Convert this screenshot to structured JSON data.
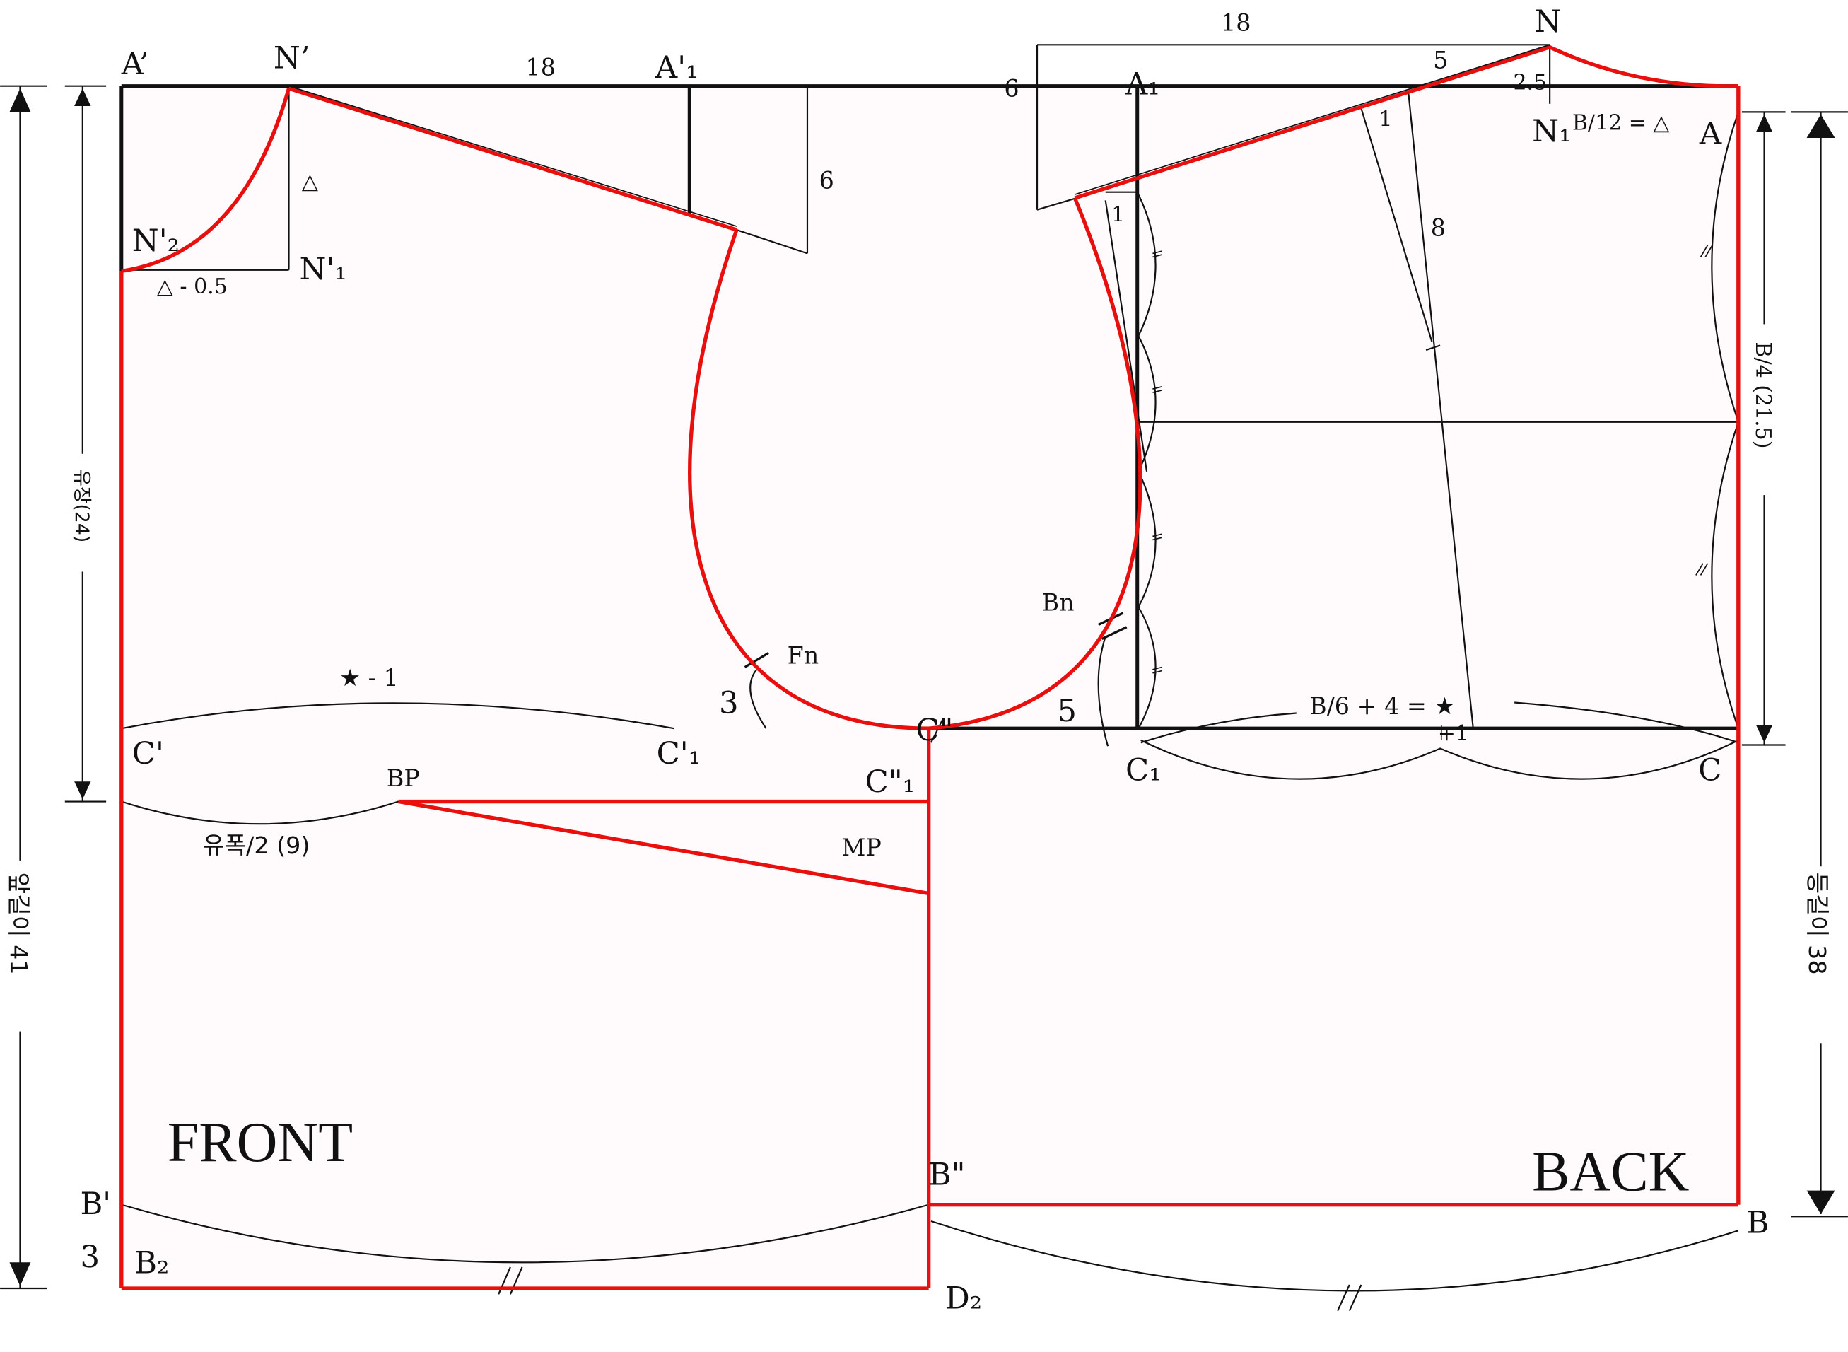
{
  "labels": {
    "A_prime": "A’",
    "N_prime": "N’",
    "front_width_18": "18",
    "A_prime_1": "A'₁",
    "front_shoulder_drop_6": "6",
    "triangle": "△",
    "N_prime_2": "N'₂",
    "N_prime_1": "N'₁",
    "triangle_minus_half": "△ - 0.5",
    "star_minus_1": "★ - 1",
    "C_prime": "C'",
    "C_prime_1": "C'₁",
    "Fn": "Fn",
    "three_armhole": "3",
    "C_double": "C\"",
    "BP": "BP",
    "C_double_1": "C\"₁",
    "bust_half": "유폭/2 (9)",
    "MP": "MP",
    "FRONT": "FRONT",
    "B_prime": "B'",
    "three_hem": "3",
    "B_2": "B₂",
    "D_2": "D₂",
    "B_double": "B\"",
    "back_width_18": "18",
    "N": "N",
    "back_drop_6": "6",
    "A_1": "A₁",
    "five_shoulder": "5",
    "two_five": "2.5",
    "one_dart": "1",
    "N_1": "N₁",
    "B12": "B/12 = △",
    "A": "A",
    "one_corner": "1",
    "eight": "8",
    "Bn": "Bn",
    "five_armhole": "5",
    "B6_plus4": "B/6 + 4 = ★",
    "plus_one": "+1",
    "C_1": "C₁",
    "C": "C",
    "BACK": "BACK",
    "B": "B",
    "front_length": "앞길이 41",
    "bust_depth": "유장(24)",
    "back_length": "등길이 38",
    "B4": "B/4 (21.5)"
  },
  "colors": {
    "pattern_line": "#e8100f",
    "guide_line": "#111111",
    "fill": "#fffafb"
  }
}
